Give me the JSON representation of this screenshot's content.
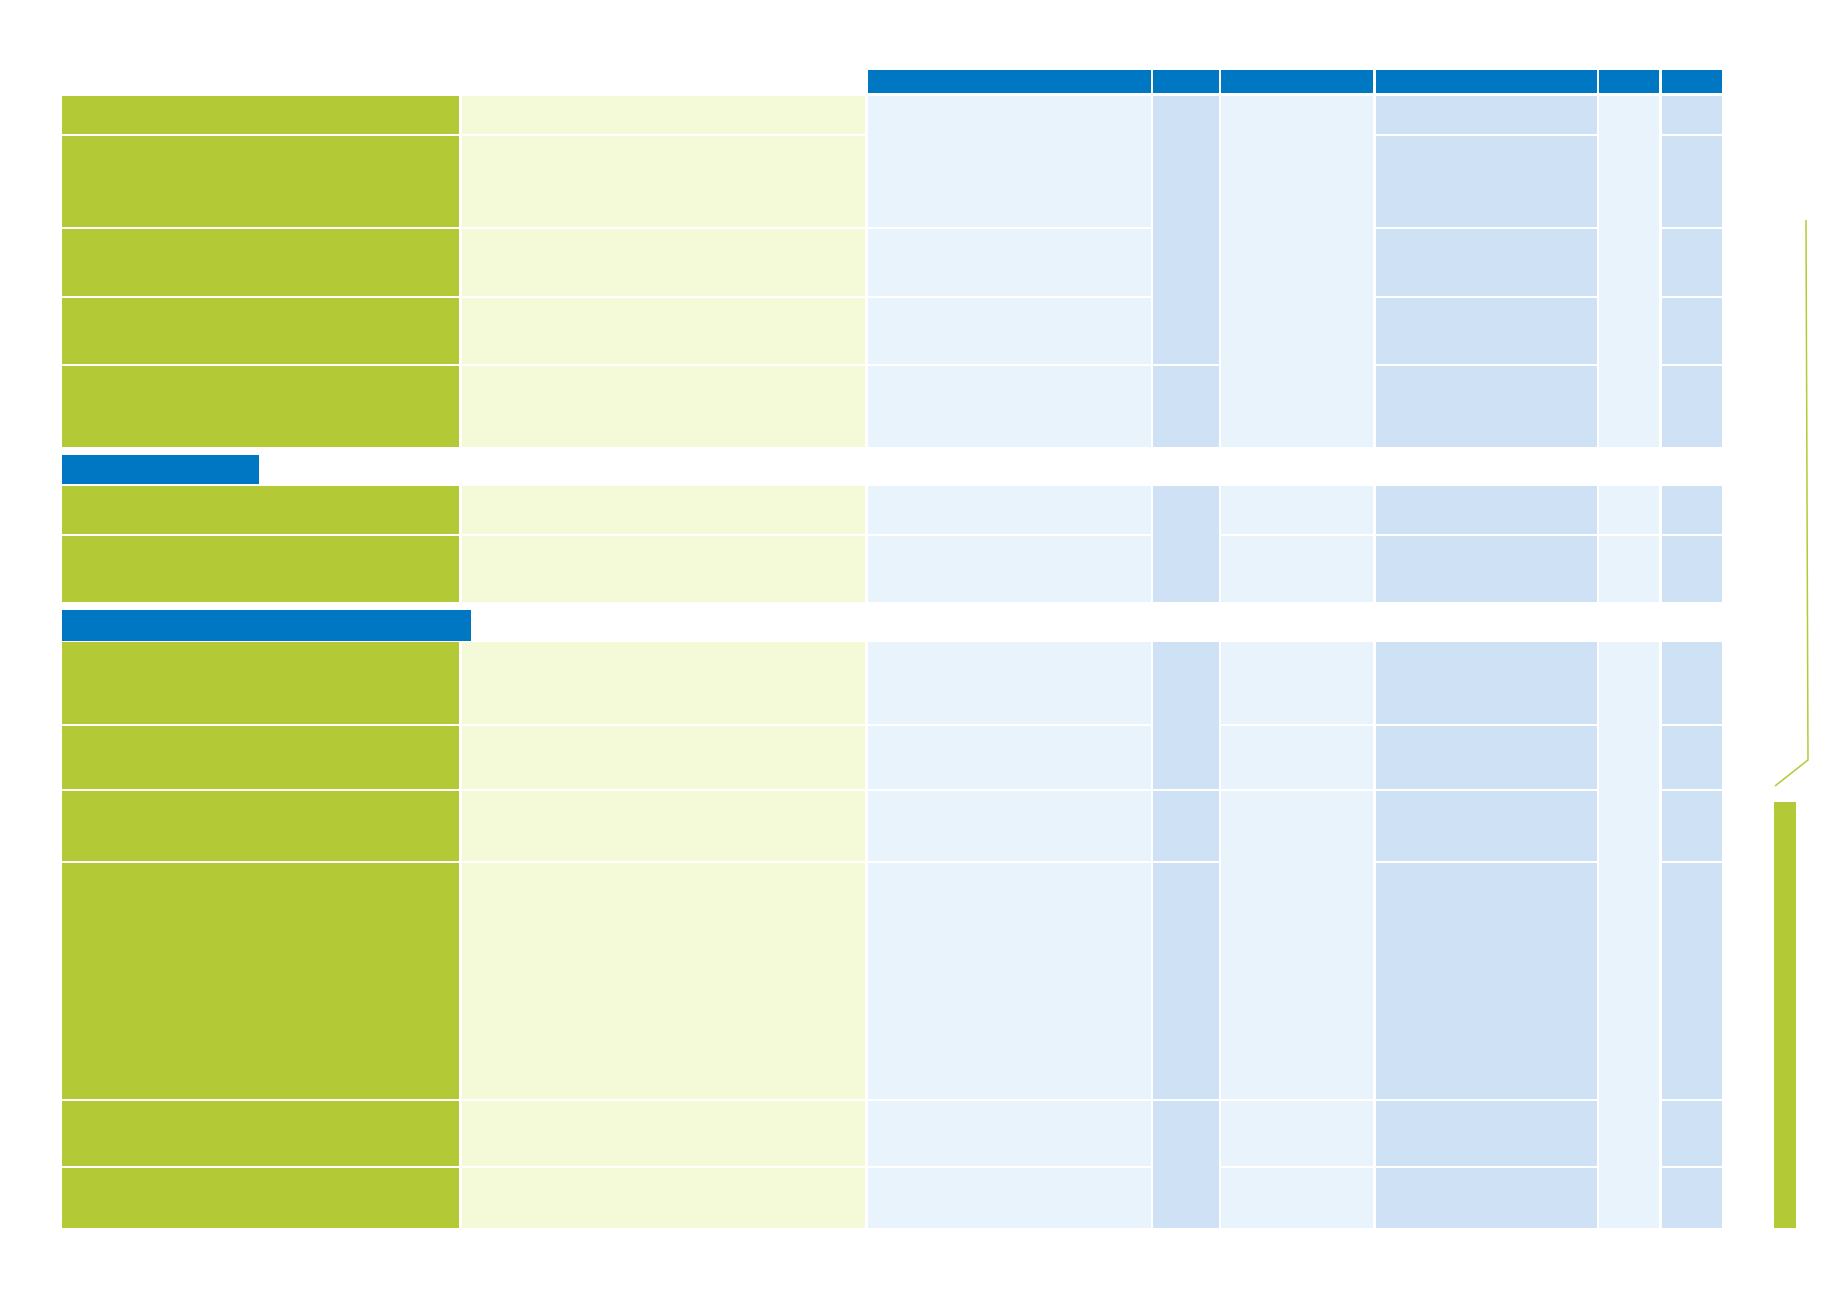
{
  "table": {
    "column_headers": [
      "",
      "",
      "",
      "",
      "",
      ""
    ],
    "section_titles": [
      "",
      ""
    ],
    "colors": {
      "header_blue": "#0077c2",
      "topic_green": "#b3c935",
      "description_green": "#f4fad8",
      "light_blue": "#e8f3fc",
      "mid_blue": "#cfe2f5"
    }
  }
}
